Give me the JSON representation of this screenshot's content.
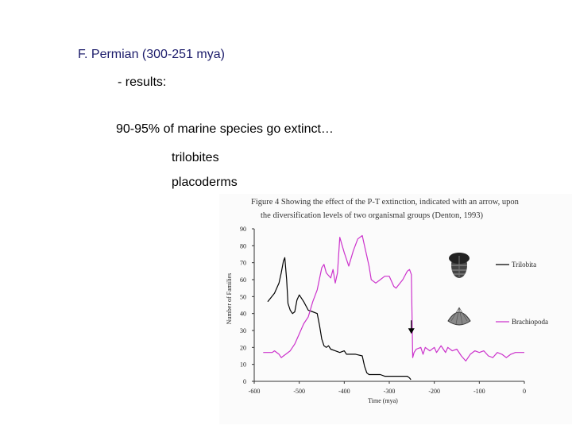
{
  "slide": {
    "heading": "F. Permian (300-251 mya)",
    "subheading": "- results:",
    "statement": "90-95% of marine species go extinct…",
    "bullets": [
      "trilobites",
      "placoderms"
    ]
  },
  "colors": {
    "heading": "#1c1c6b",
    "trilobite_series": "#000000",
    "brachiopod_series": "#cc33cc"
  },
  "chart_data": {
    "type": "line",
    "caption": [
      "Figure 4 Showing the effect of the P-T extinction, indicated with an arrow, upon",
      "the diversification levels of two organismal groups (Denton, 1993)"
    ],
    "xlabel": "Time (mya)",
    "ylabel": "Number of Families",
    "xlim": [
      -600,
      0
    ],
    "ylim": [
      0,
      90
    ],
    "x_ticks": [
      -600,
      -500,
      -400,
      -300,
      -200,
      -100,
      0
    ],
    "x_tick_labels": [
      "-600",
      "-500",
      "-400",
      "-300",
      "-200",
      "-100",
      "0"
    ],
    "y_ticks": [
      0,
      10,
      20,
      30,
      40,
      50,
      60,
      70,
      80,
      90
    ],
    "grid": false,
    "legend_placement": "right",
    "annotation": {
      "type": "arrow",
      "x": -251,
      "y_from": 36,
      "y_to": 28
    },
    "series": [
      {
        "name": "Trilobita",
        "x": [
          -570,
          -555,
          -545,
          -540,
          -535,
          -532,
          -528,
          -525,
          -520,
          -515,
          -510,
          -505,
          -500,
          -490,
          -480,
          -470,
          -460,
          -455,
          -450,
          -445,
          -440,
          -435,
          -430,
          -420,
          -410,
          -400,
          -395,
          -385,
          -375,
          -360,
          -355,
          -350,
          -345,
          -340,
          -330,
          -320,
          -310,
          -300,
          -290,
          -280,
          -270,
          -260,
          -255,
          -252
        ],
        "values": [
          47,
          52,
          58,
          64,
          71,
          73,
          60,
          46,
          42,
          40,
          41,
          48,
          51,
          47,
          42,
          41,
          40,
          33,
          25,
          21,
          20,
          21,
          19,
          18,
          17,
          18,
          16,
          16,
          16,
          15,
          9,
          5,
          4,
          4,
          4,
          4,
          3,
          3,
          3,
          3,
          3,
          3,
          2,
          1
        ]
      },
      {
        "name": "Brachiopoda",
        "x": [
          -580,
          -565,
          -560,
          -555,
          -545,
          -540,
          -530,
          -520,
          -510,
          -500,
          -490,
          -480,
          -470,
          -460,
          -450,
          -445,
          -440,
          -430,
          -425,
          -420,
          -415,
          -410,
          -400,
          -390,
          -380,
          -370,
          -360,
          -355,
          -350,
          -345,
          -340,
          -330,
          -320,
          -310,
          -300,
          -290,
          -285,
          -270,
          -260,
          -255,
          -251,
          -248,
          -245,
          -240,
          -230,
          -225,
          -220,
          -210,
          -200,
          -195,
          -190,
          -185,
          -180,
          -175,
          -170,
          -160,
          -150,
          -140,
          -130,
          -120,
          -110,
          -100,
          -90,
          -80,
          -70,
          -60,
          -50,
          -40,
          -30,
          -20,
          -10,
          0
        ],
        "values": [
          17,
          17,
          17,
          18,
          16,
          14,
          16,
          18,
          22,
          28,
          34,
          38,
          47,
          54,
          67,
          69,
          64,
          61,
          66,
          58,
          64,
          85,
          76,
          68,
          77,
          84,
          86,
          80,
          74,
          68,
          60,
          58,
          60,
          62,
          62,
          56,
          55,
          60,
          65,
          66,
          63,
          14,
          17,
          19,
          20,
          16,
          20,
          18,
          20,
          17,
          19,
          21,
          19,
          17,
          20,
          18,
          19,
          15,
          12,
          16,
          18,
          17,
          18,
          15,
          14,
          17,
          16,
          14,
          16,
          17,
          17,
          17
        ]
      }
    ]
  }
}
